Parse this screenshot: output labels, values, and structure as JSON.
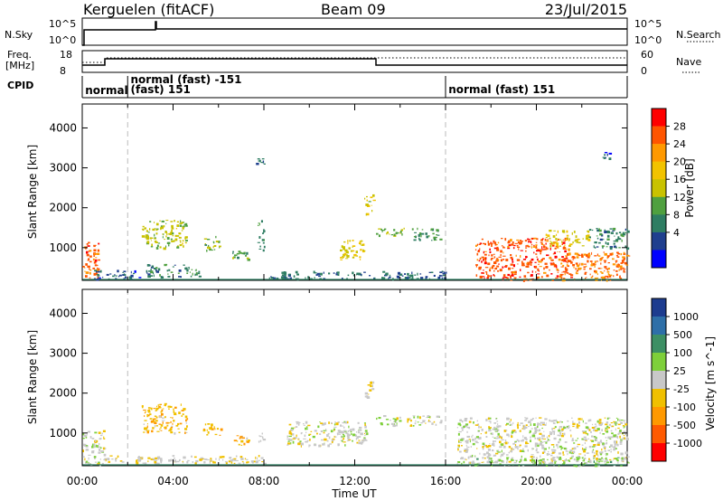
{
  "header": {
    "station": "Kerguelen (fitACF)",
    "beam": "Beam 09",
    "date": "23/Jul/2015"
  },
  "labels": {
    "nsky": "N.Sky",
    "nsearch": "N.Search",
    "freq_line1": "Freq.",
    "freq_line2": "[MHz]",
    "nave": "Nave",
    "cpid": "CPID",
    "nsky_top": "10^5",
    "nsky_bottom": "10^0",
    "nsearch_top": "10^5",
    "nsearch_bottom": "10^0",
    "freq_top": "18",
    "freq_bottom": "8",
    "nave_top": "60",
    "nave_bottom": "0"
  },
  "cpid_labels": [
    {
      "text": "normal",
      "hour": 0.05,
      "row": 2
    },
    {
      "text": "normal (fast) -151",
      "hour": 2.05,
      "row": 0
    },
    {
      "text": "(fast) 151",
      "hour": 2.05,
      "row": 1
    },
    {
      "text": "normal (fast) 151",
      "hour": 16.05,
      "row": 1
    }
  ],
  "cpid_boundaries": [
    2,
    16
  ],
  "chart_data": [
    {
      "type": "heatmap",
      "title": "",
      "xlabel": "",
      "ylabel": "Slant Range [km]",
      "xlim": [
        0,
        24
      ],
      "ylim": [
        180,
        4600
      ],
      "yticks": [
        1000,
        2000,
        3000,
        4000
      ],
      "colorbar": {
        "label": "Power [dB]",
        "ticks": [
          "28",
          "24",
          "20",
          "16",
          "12",
          "8",
          "4"
        ],
        "colors": [
          "#ff0000",
          "#ff5500",
          "#ff9900",
          "#f2c300",
          "#c9c200",
          "#4fa03f",
          "#2e7d62",
          "#1f3f8e",
          "#0000ff"
        ],
        "range": [
          0,
          32
        ]
      },
      "regions": [
        {
          "t0": 0.0,
          "t1": 0.7,
          "r0": 200,
          "r1": 1150,
          "level": 26
        },
        {
          "t0": 0.4,
          "t1": 2.5,
          "r0": 220,
          "r1": 450,
          "level": 6
        },
        {
          "t0": 2.6,
          "t1": 4.6,
          "r0": 1000,
          "r1": 1700,
          "level": 15
        },
        {
          "t0": 2.8,
          "t1": 5.2,
          "r0": 280,
          "r1": 600,
          "level": 9
        },
        {
          "t0": 5.3,
          "t1": 6.1,
          "r0": 950,
          "r1": 1300,
          "level": 13
        },
        {
          "t0": 6.6,
          "t1": 7.4,
          "r0": 700,
          "r1": 960,
          "level": 12
        },
        {
          "t0": 7.7,
          "t1": 8.0,
          "r0": 950,
          "r1": 1700,
          "level": 10
        },
        {
          "t0": 7.6,
          "t1": 8.0,
          "r0": 3100,
          "r1": 3250,
          "level": 8
        },
        {
          "t0": 11.3,
          "t1": 12.4,
          "r0": 700,
          "r1": 1200,
          "level": 17
        },
        {
          "t0": 12.4,
          "t1": 12.8,
          "r0": 1800,
          "r1": 2350,
          "level": 17
        },
        {
          "t0": 12.9,
          "t1": 14.2,
          "r0": 1300,
          "r1": 1500,
          "level": 14
        },
        {
          "t0": 14.5,
          "t1": 15.8,
          "r0": 1200,
          "r1": 1500,
          "level": 11
        },
        {
          "t0": 8.2,
          "t1": 16.0,
          "r0": 230,
          "r1": 420,
          "level": 7
        },
        {
          "t0": 17.3,
          "t1": 21.5,
          "r0": 200,
          "r1": 1250,
          "level": 27
        },
        {
          "t0": 21.0,
          "t1": 24.0,
          "r0": 200,
          "r1": 900,
          "level": 25
        },
        {
          "t0": 20.4,
          "t1": 22.3,
          "r0": 1050,
          "r1": 1450,
          "level": 18
        },
        {
          "t0": 22.3,
          "t1": 24.0,
          "r0": 1000,
          "r1": 1500,
          "level": 9
        },
        {
          "t0": 22.9,
          "t1": 23.2,
          "r0": 3250,
          "r1": 3400,
          "level": 6
        }
      ]
    },
    {
      "type": "heatmap",
      "title": "",
      "xlabel": "Time UT",
      "ylabel": "Slant Range [km]",
      "xlim": [
        0,
        24
      ],
      "ylim": [
        180,
        4600
      ],
      "yticks": [
        1000,
        2000,
        3000,
        4000
      ],
      "xticks": [
        "00:00",
        "04:00",
        "08:00",
        "12:00",
        "16:00",
        "20:00",
        "00:00"
      ],
      "colorbar": {
        "label": "Velocity [m s^-1]",
        "ticks": [
          "1000",
          "500",
          "100",
          "25",
          "-25",
          "-100",
          "-500",
          "-1000"
        ],
        "colors": [
          "#1d3c8f",
          "#2e6fa8",
          "#3d8f64",
          "#7ecf3a",
          "#c8c8c8",
          "#f0c000",
          "#ff9900",
          "#ff5a00",
          "#ff0000"
        ],
        "range": [
          -1200,
          1200
        ]
      },
      "regions": [
        {
          "t0": 0.0,
          "t1": 1.0,
          "r0": 200,
          "r1": 1100,
          "level": 50
        },
        {
          "t0": 2.6,
          "t1": 4.6,
          "r0": 1000,
          "r1": 1750,
          "level": -300
        },
        {
          "t0": 5.3,
          "t1": 6.1,
          "r0": 950,
          "r1": 1250,
          "level": -400
        },
        {
          "t0": 6.6,
          "t1": 7.4,
          "r0": 700,
          "r1": 950,
          "level": -300
        },
        {
          "t0": 7.7,
          "t1": 8.0,
          "r0": 800,
          "r1": 1050,
          "level": 60
        },
        {
          "t0": 1.0,
          "t1": 8.0,
          "r0": 250,
          "r1": 450,
          "level": -80
        },
        {
          "t0": 9.0,
          "t1": 12.5,
          "r0": 700,
          "r1": 1300,
          "level": 0
        },
        {
          "t0": 11.2,
          "t1": 12.5,
          "r0": 900,
          "r1": 1150,
          "level": 70
        },
        {
          "t0": 12.4,
          "t1": 12.8,
          "r0": 1900,
          "r1": 2300,
          "level": -80
        },
        {
          "t0": 12.9,
          "t1": 15.8,
          "r0": 1200,
          "r1": 1450,
          "level": 0
        },
        {
          "t0": 16.5,
          "t1": 24.0,
          "r0": 250,
          "r1": 1400,
          "level": 0
        },
        {
          "t0": 17.0,
          "t1": 24.0,
          "r0": 200,
          "r1": 400,
          "level": 200
        }
      ]
    }
  ]
}
